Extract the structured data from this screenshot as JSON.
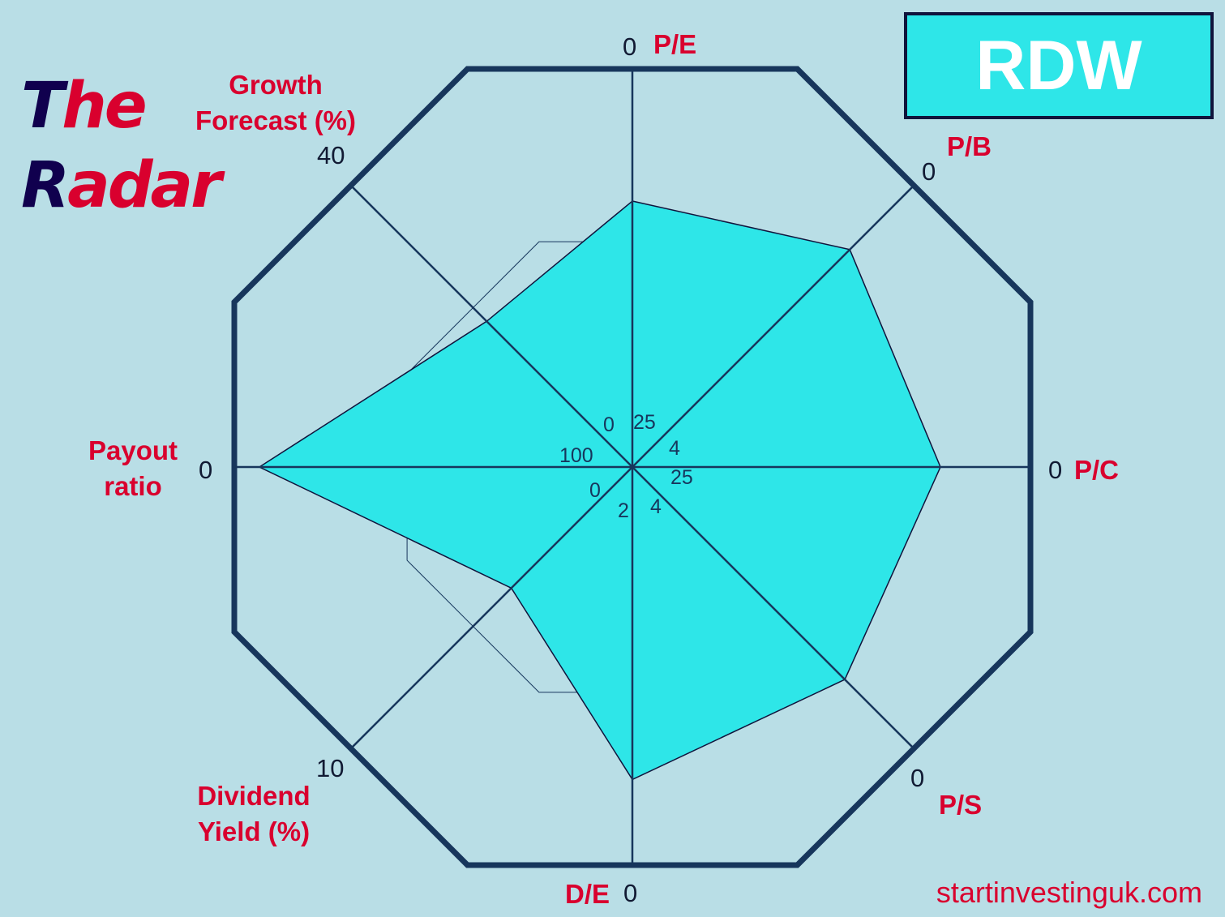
{
  "title": {
    "part1_dark": "T",
    "part1_red": "he",
    "part2_dark": "R",
    "part2_red": "adar"
  },
  "ticker": "RDW",
  "website": "startinvestinguk.com",
  "colors": {
    "background": "#b9dee6",
    "grid": "#17365c",
    "fill": "#2ee6e8",
    "label": "#d9002e"
  },
  "chart_data": {
    "type": "radar",
    "title": "The Radar",
    "series_name": "RDW",
    "axes": [
      {
        "name": "P/E",
        "outer_tick": "0",
        "center_tick": "25",
        "outer": 0,
        "center": 25,
        "value": 8.3
      },
      {
        "name": "P/B",
        "outer_tick": "0",
        "center_tick": "4",
        "outer": 0,
        "center": 4,
        "value": 0.91
      },
      {
        "name": "P/C",
        "outer_tick": "0",
        "center_tick": "25",
        "outer": 0,
        "center": 25,
        "value": 5.65
      },
      {
        "name": "P/S",
        "outer_tick": "0",
        "center_tick": "4",
        "outer": 0,
        "center": 4,
        "value": 0.98
      },
      {
        "name": "D/E",
        "outer_tick": "0",
        "center_tick": "2",
        "outer": 0,
        "center": 2,
        "value": 0.43
      },
      {
        "name": "Dividend Yield (%)",
        "line1": "Dividend",
        "line2": "Yield (%)",
        "outer_tick": "10",
        "center_tick": "0",
        "outer": 10,
        "center": 0,
        "value": 4.3
      },
      {
        "name": "Payout ratio",
        "line1": "Payout",
        "line2": "ratio",
        "outer_tick": "0",
        "center_tick": "100",
        "outer": 0,
        "center": 100,
        "value": 6.3
      },
      {
        "name": "Growth Forecast (%)",
        "line1": "Growth",
        "line2": "Forecast (%)",
        "outer_tick": "40",
        "center_tick": "0",
        "outer": 40,
        "center": 0,
        "value": 20.7
      }
    ],
    "reference_ring_fraction": 0.566
  }
}
